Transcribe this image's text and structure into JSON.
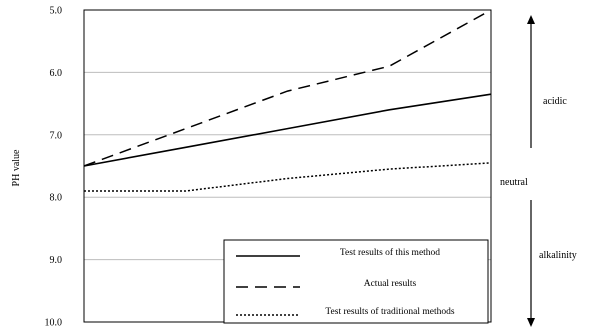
{
  "chart_data": {
    "type": "line",
    "title": "",
    "xlabel": "",
    "ylabel": "PH value",
    "x": [
      0,
      1,
      2,
      3,
      4
    ],
    "ylim": [
      5.0,
      10.0
    ],
    "y_inverted": true,
    "yticks": [
      "5.0",
      "6.0",
      "7.0",
      "8.0",
      "9.0",
      "10.0"
    ],
    "grid": true,
    "legend_position": "bottom-right",
    "series": [
      {
        "name": "Test results of this method",
        "style": "solid",
        "color": "#000000",
        "values": [
          7.5,
          7.2,
          6.9,
          6.6,
          6.35
        ]
      },
      {
        "name": "Actual results",
        "style": "dashed",
        "color": "#000000",
        "values": [
          7.5,
          6.9,
          6.3,
          5.9,
          5.0
        ]
      },
      {
        "name": "Test results of traditional methods",
        "style": "dotted",
        "color": "#000000",
        "values": [
          7.9,
          7.9,
          7.7,
          7.55,
          7.45
        ]
      }
    ],
    "annotations": {
      "top_label": "acidic",
      "middle_label": "neutral",
      "bottom_label": "alkalinity"
    }
  }
}
